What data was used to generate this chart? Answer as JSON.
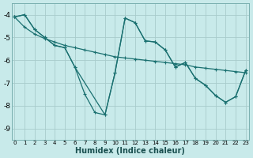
{
  "xlabel": "Humidex (Indice chaleur)",
  "bg_color": "#c8eaea",
  "grid_color": "#a8cccc",
  "line_color": "#1a7070",
  "xlim": [
    -0.3,
    23.3
  ],
  "ylim": [
    -9.5,
    -3.5
  ],
  "yticks": [
    -9,
    -8,
    -7,
    -6,
    -5,
    -4
  ],
  "xticks": [
    0,
    1,
    2,
    3,
    4,
    5,
    6,
    7,
    8,
    9,
    10,
    11,
    12,
    13,
    14,
    15,
    16,
    17,
    18,
    19,
    20,
    21,
    22,
    23
  ],
  "line1_x": [
    0,
    1,
    2,
    3,
    4,
    5,
    6,
    7,
    8,
    9,
    10,
    11,
    12,
    13,
    14,
    15,
    16,
    17,
    18,
    19,
    20,
    21,
    22,
    23
  ],
  "line1_y": [
    -4.1,
    -4.0,
    -4.65,
    -5.0,
    -5.35,
    -5.45,
    -6.3,
    -7.5,
    -8.3,
    -8.4,
    -6.55,
    -4.15,
    -4.35,
    -5.15,
    -5.2,
    -5.55,
    -6.3,
    -6.1,
    -6.8,
    -7.1,
    -7.55,
    -7.85,
    -7.6,
    -6.45
  ],
  "line2_x": [
    0,
    1,
    2,
    3,
    4,
    5,
    6,
    7,
    8,
    9,
    10,
    11,
    12,
    13,
    14,
    15,
    16,
    17,
    18,
    19,
    20,
    21,
    22,
    23
  ],
  "line2_y": [
    -4.1,
    -4.55,
    -4.85,
    -5.05,
    -5.2,
    -5.35,
    -5.45,
    -5.55,
    -5.65,
    -5.75,
    -5.85,
    -5.9,
    -5.95,
    -6.0,
    -6.05,
    -6.1,
    -6.15,
    -6.2,
    -6.3,
    -6.35,
    -6.4,
    -6.45,
    -6.5,
    -6.55
  ],
  "line3_x": [
    0,
    1,
    2,
    3,
    4,
    5,
    6,
    9,
    10,
    11,
    12,
    13,
    14,
    15,
    16,
    17,
    18,
    19,
    20,
    21,
    22,
    23
  ],
  "line3_y": [
    -4.1,
    -4.0,
    -4.65,
    -5.0,
    -5.35,
    -5.45,
    -6.3,
    -8.4,
    -6.55,
    -4.15,
    -4.35,
    -5.15,
    -5.2,
    -5.55,
    -6.3,
    -6.1,
    -6.8,
    -7.1,
    -7.55,
    -7.85,
    -7.6,
    -6.45
  ]
}
